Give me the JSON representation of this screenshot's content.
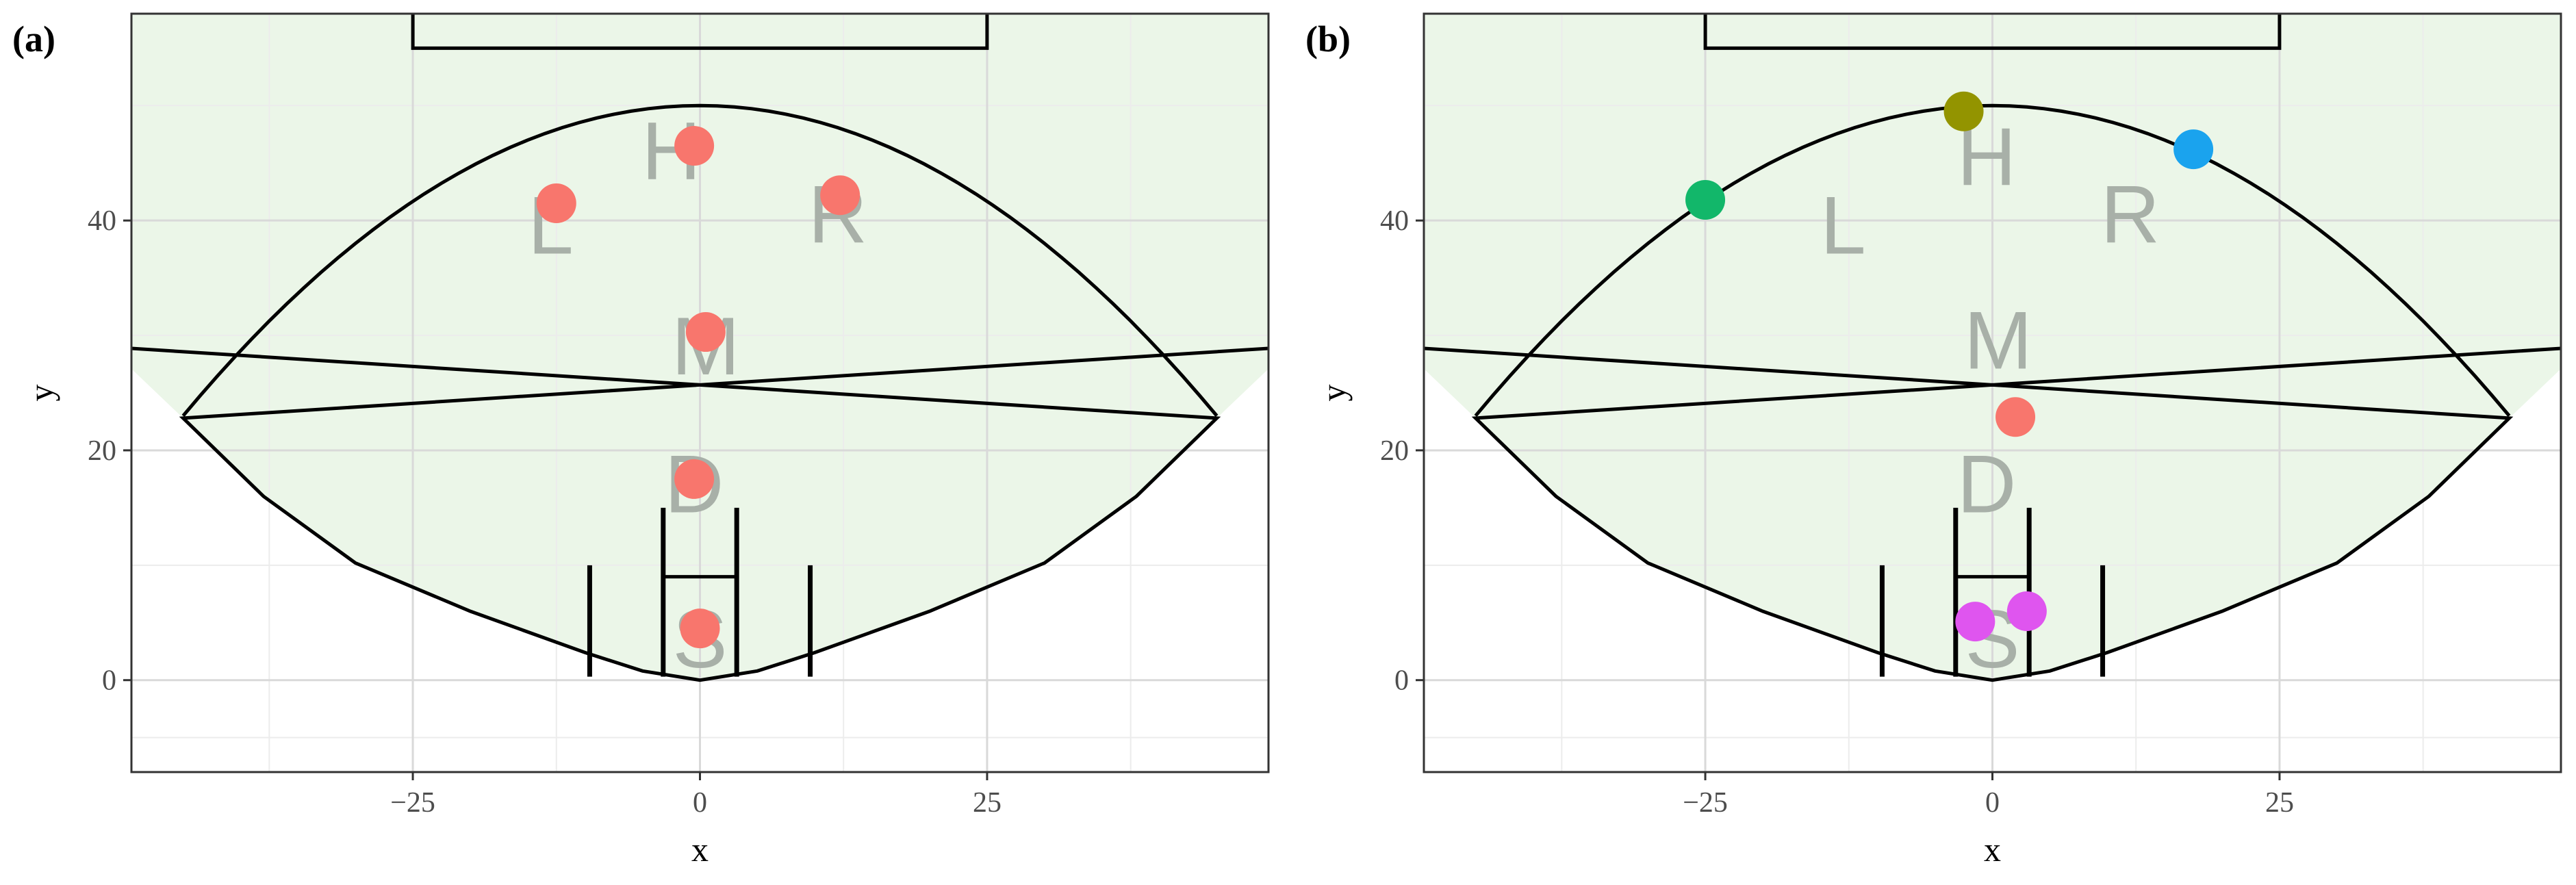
{
  "chart_data": [
    {
      "type": "scatter",
      "panel_label": "(a)",
      "xlabel": "x",
      "ylabel": "y",
      "xlim": [
        -49.5,
        49.5
      ],
      "ylim": [
        -8,
        58
      ],
      "x_ticks": [
        -25,
        0,
        25
      ],
      "y_ticks": [
        0,
        20,
        40
      ],
      "grid": true,
      "zone_labels": [
        {
          "text": "H",
          "x": -2.5,
          "y": 45.5
        },
        {
          "text": "L",
          "x": -13,
          "y": 39
        },
        {
          "text": "R",
          "x": 12,
          "y": 40
        },
        {
          "text": "M",
          "x": 0.5,
          "y": 28.5
        },
        {
          "text": "D",
          "x": -0.5,
          "y": 16.5
        },
        {
          "text": "S",
          "x": 0,
          "y": 3
        }
      ],
      "points": [
        {
          "x": -0.5,
          "y": 46.5,
          "color": "#f8766d"
        },
        {
          "x": -12.5,
          "y": 41.5,
          "color": "#f8766d"
        },
        {
          "x": 12.2,
          "y": 42.2,
          "color": "#f8766d"
        },
        {
          "x": 0.5,
          "y": 30.3,
          "color": "#f8766d"
        },
        {
          "x": -0.5,
          "y": 17.5,
          "color": "#f8766d"
        },
        {
          "x": 0,
          "y": 4.5,
          "color": "#f8766d"
        }
      ]
    },
    {
      "type": "scatter",
      "panel_label": "(b)",
      "xlabel": "x",
      "ylabel": "y",
      "xlim": [
        -49.5,
        49.5
      ],
      "ylim": [
        -8,
        58
      ],
      "x_ticks": [
        -25,
        0,
        25
      ],
      "y_ticks": [
        0,
        20,
        40
      ],
      "grid": true,
      "zone_labels": [
        {
          "text": "H",
          "x": -0.5,
          "y": 45
        },
        {
          "text": "L",
          "x": -13,
          "y": 39
        },
        {
          "text": "R",
          "x": 12,
          "y": 40
        },
        {
          "text": "M",
          "x": 0.5,
          "y": 29
        },
        {
          "text": "D",
          "x": -0.5,
          "y": 16.5
        },
        {
          "text": "S",
          "x": 0,
          "y": 3
        }
      ],
      "points": [
        {
          "x": -2.5,
          "y": 49.5,
          "color": "#939400"
        },
        {
          "x": -25,
          "y": 41.8,
          "color": "#12b76a"
        },
        {
          "x": 17.5,
          "y": 46.2,
          "color": "#1aa3ee"
        },
        {
          "x": 2,
          "y": 22.9,
          "color": "#f8766d"
        },
        {
          "x": -1.5,
          "y": 5.1,
          "color": "#df55ef"
        },
        {
          "x": 3,
          "y": 6,
          "color": "#df55ef"
        }
      ]
    }
  ],
  "colors": {
    "zone_fill": "#ebf6e8",
    "grid_major": "#d9d9d9",
    "grid_minor": "#ececec",
    "line": "#000000"
  }
}
